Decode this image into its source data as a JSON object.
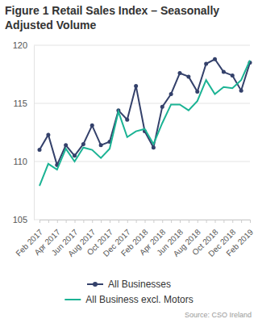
{
  "chart_data": {
    "type": "line",
    "title": "Figure 1 Retail Sales Index – Seasonally Adjusted Volume",
    "source": "Source: CSO Ireland",
    "categories": [
      "Feb 2017",
      null,
      "Apr 2017",
      null,
      "Jun 2017",
      null,
      "Aug 2017",
      null,
      "Oct 2017",
      null,
      "Dec 2017",
      null,
      "Feb 2018",
      null,
      "Apr 2018",
      null,
      "Jun 2018",
      null,
      "Aug 2018",
      null,
      "Oct 2018",
      null,
      "Dec 2018",
      null,
      "Feb 2019"
    ],
    "series": [
      {
        "name": "All Businesses",
        "color": "#34416b",
        "marker": "circle",
        "values": [
          111.0,
          112.3,
          109.7,
          111.4,
          110.5,
          111.5,
          113.1,
          111.4,
          111.7,
          114.4,
          113.6,
          116.5,
          112.6,
          111.2,
          114.7,
          115.8,
          117.6,
          117.3,
          116.0,
          118.4,
          118.8,
          117.7,
          117.4,
          116.1,
          118.5
        ]
      },
      {
        "name": "All Business excl. Motors",
        "color": "#1bb394",
        "marker": "none",
        "values": [
          107.9,
          109.8,
          109.3,
          111.1,
          110.0,
          111.2,
          111.0,
          110.3,
          111.1,
          114.3,
          112.1,
          112.6,
          112.8,
          111.5,
          113.3,
          114.9,
          114.9,
          114.4,
          115.2,
          117.0,
          115.8,
          116.4,
          116.3,
          117.0,
          118.7
        ]
      }
    ],
    "ylim": [
      105,
      120
    ],
    "yticks": [
      105,
      110,
      115,
      120
    ],
    "grid": true,
    "legend": "bottom"
  }
}
